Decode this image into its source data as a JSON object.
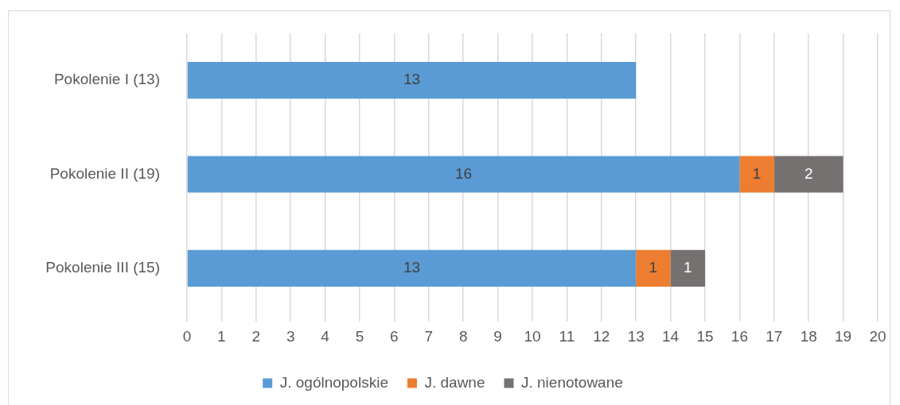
{
  "chart_data": {
    "type": "bar",
    "orientation": "horizontal",
    "stacked": true,
    "categories": [
      "Pokolenie I (13)",
      "Pokolenie II (19)",
      "Pokolenie III (15)"
    ],
    "series": [
      {
        "name": "J. ogólnopolskie",
        "color": "#5b9bd5",
        "values": [
          13,
          16,
          13
        ]
      },
      {
        "name": "J. dawne",
        "color": "#ed7d31",
        "values": [
          null,
          1,
          1
        ]
      },
      {
        "name": "J. nienotowane",
        "color": "#767171",
        "values": [
          null,
          2,
          1
        ]
      }
    ],
    "xlim": [
      0,
      20
    ],
    "xticks": [
      0,
      1,
      2,
      3,
      4,
      5,
      6,
      7,
      8,
      9,
      10,
      11,
      12,
      13,
      14,
      15,
      16,
      17,
      18,
      19,
      20
    ],
    "grid": "x",
    "legend": "bottom",
    "data_labels": true
  }
}
